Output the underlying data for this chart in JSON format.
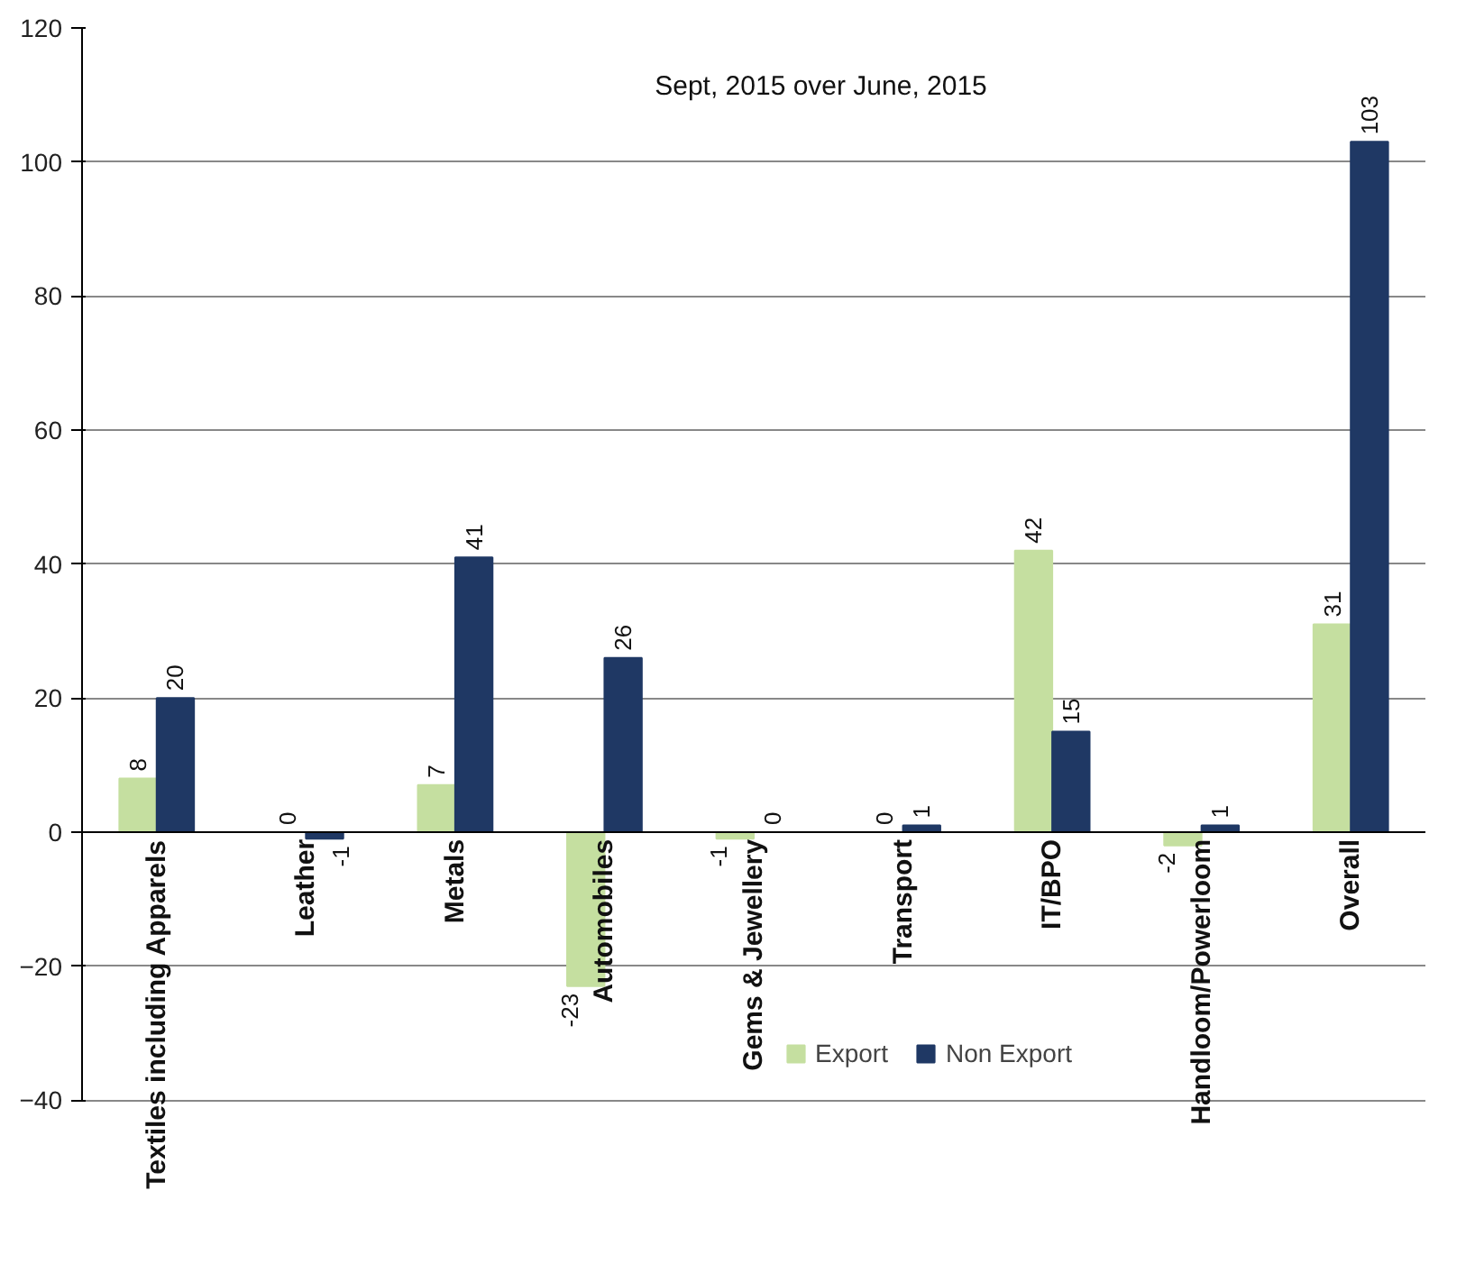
{
  "chart_data": {
    "type": "bar",
    "title": "Sept, 2015 over June, 2015",
    "categories": [
      "Textiles including Apparels",
      "Leather",
      "Metals",
      "Automobiles",
      "Gems & Jewellery",
      "Transport",
      "IT/BPO",
      "Handloom/Powerloom",
      "Overall"
    ],
    "series": [
      {
        "name": "Export",
        "color": "#c5dfa0",
        "values": [
          8,
          0,
          7,
          -23,
          -1,
          0,
          42,
          -2,
          31
        ]
      },
      {
        "name": "Non Export",
        "color": "#1f3864",
        "values": [
          20,
          -1,
          41,
          26,
          0,
          1,
          15,
          1,
          103
        ]
      }
    ],
    "ylim": [
      -40,
      120
    ],
    "yticks": [
      -40,
      -20,
      0,
      20,
      40,
      60,
      80,
      100,
      120
    ],
    "grid": "y",
    "legend": "bottom",
    "data_labels": true
  }
}
